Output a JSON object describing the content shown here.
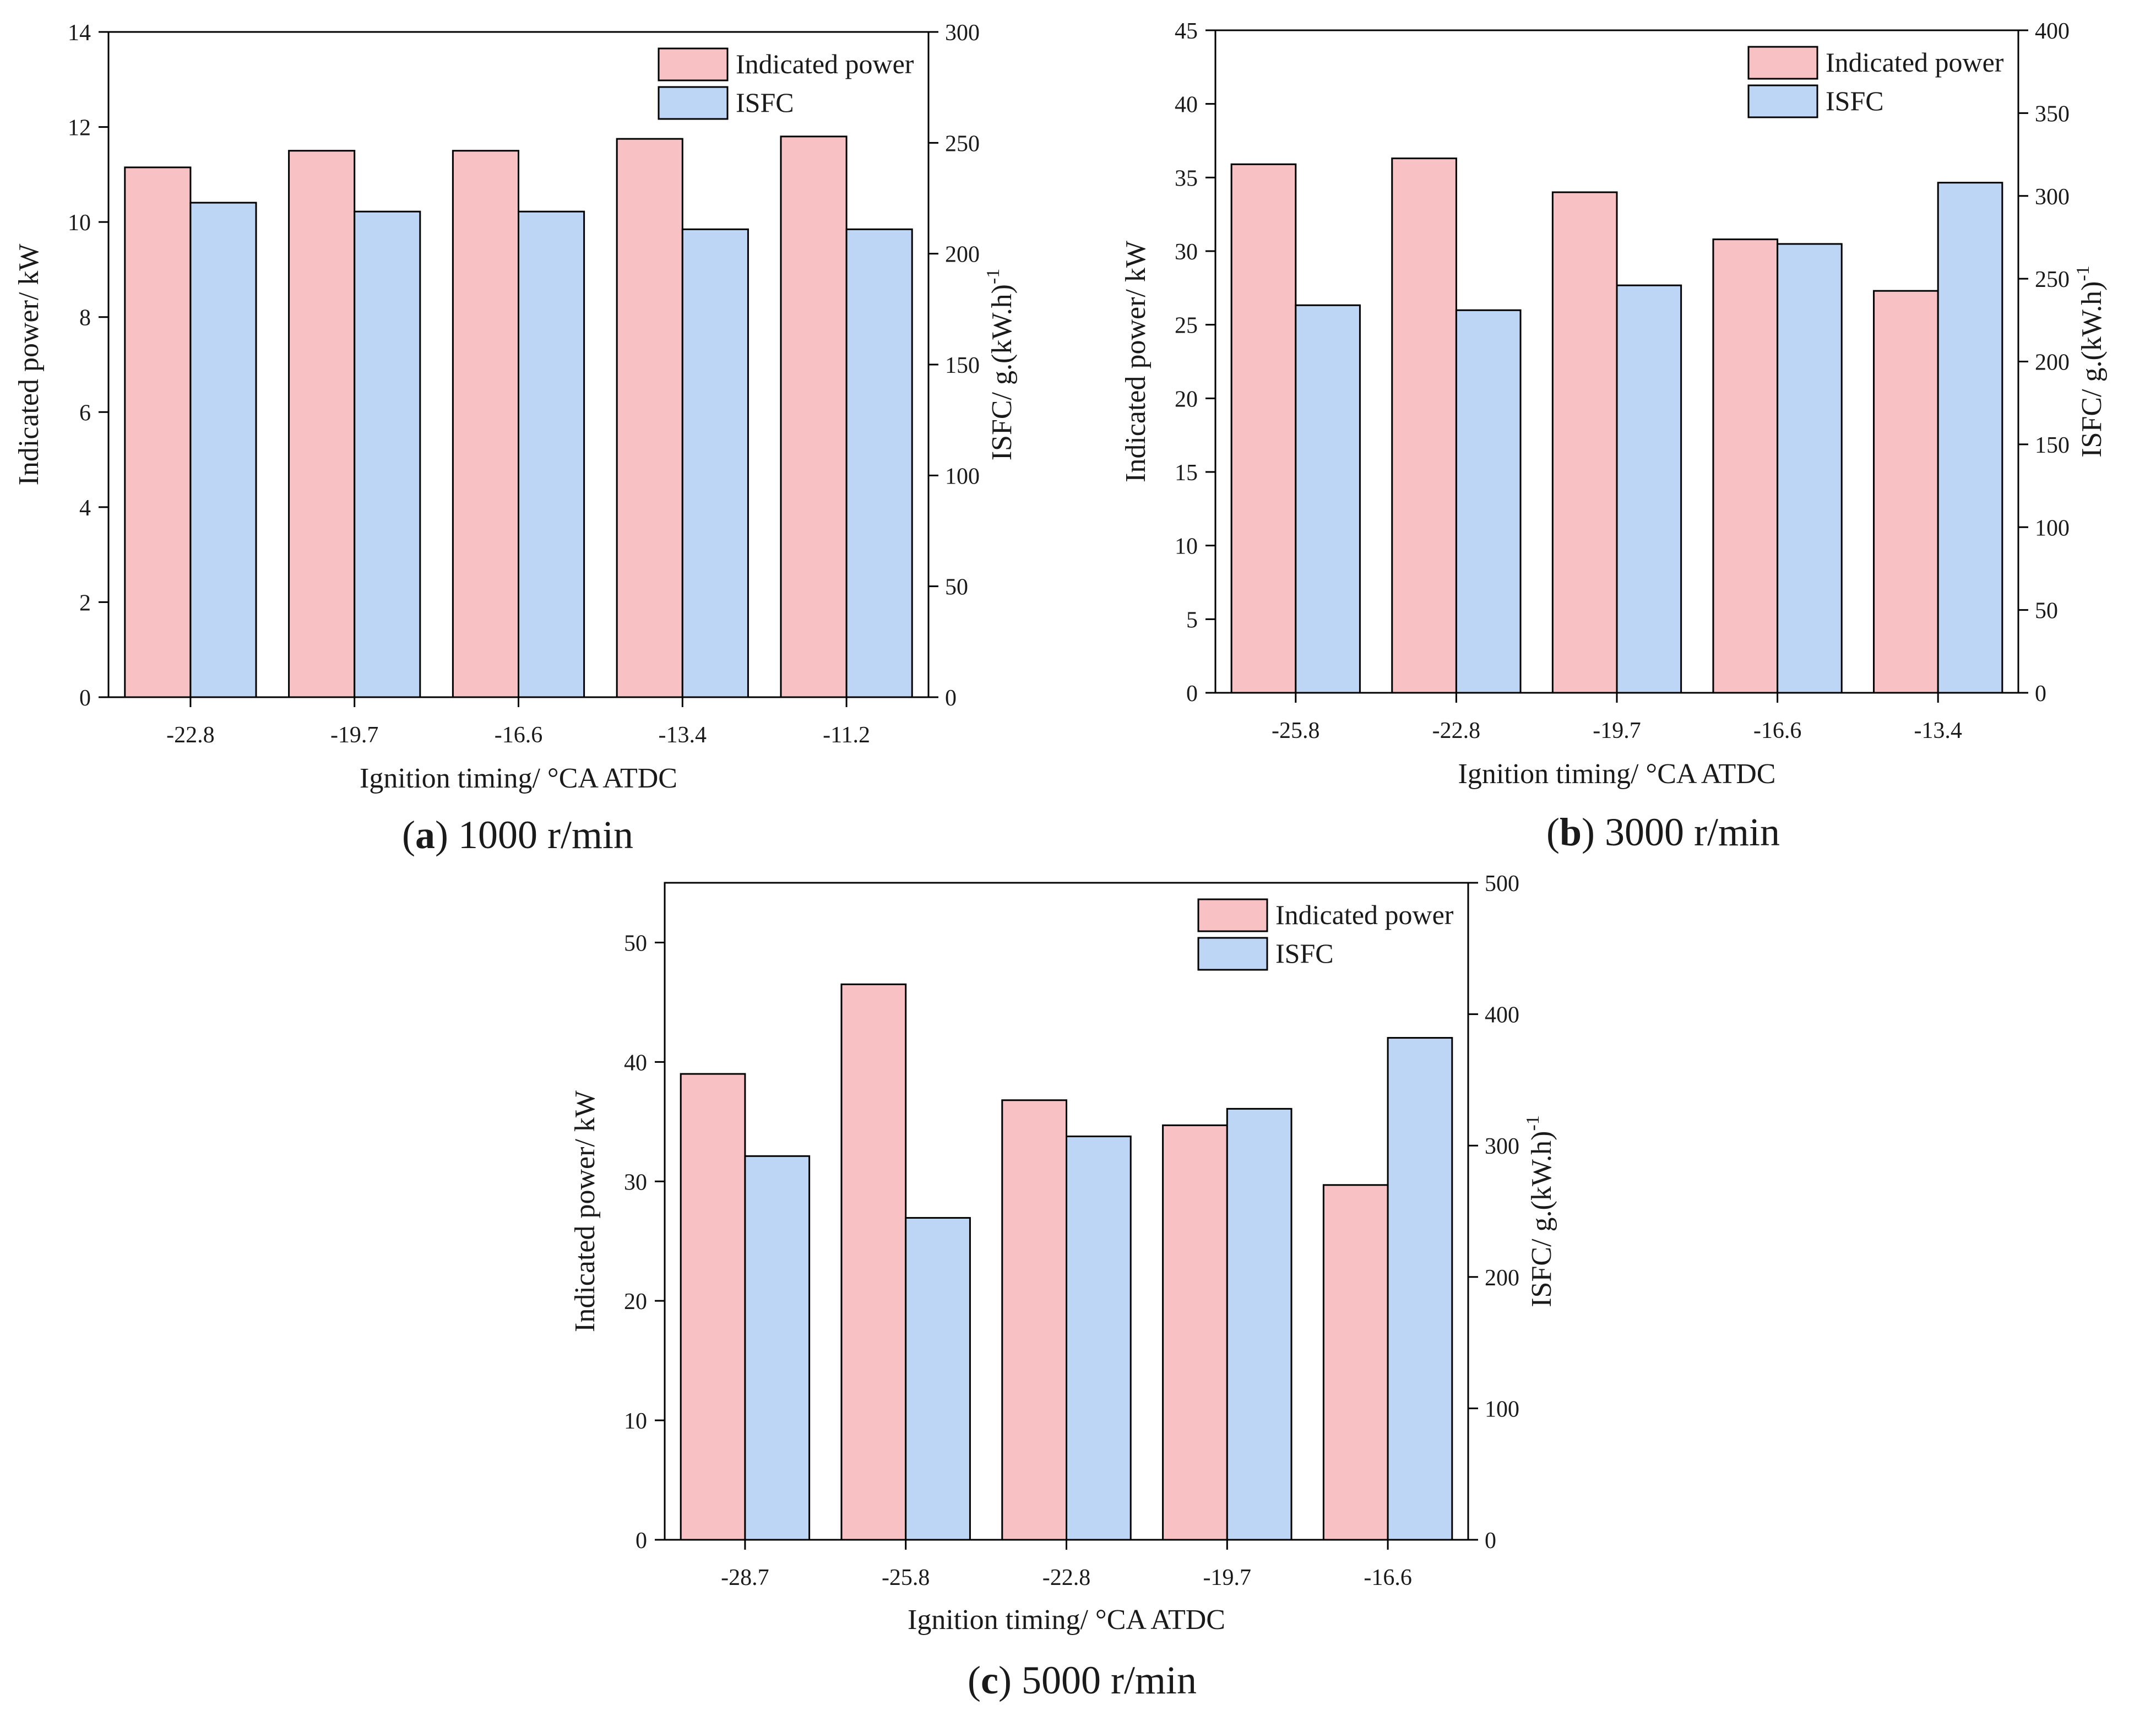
{
  "colors": {
    "indicated_power": "#f8c1c4",
    "isfc": "#bdd6f6"
  },
  "chart_data": [
    {
      "type": "bar",
      "caption": {
        "letter": "a",
        "text": " 1000 r/min",
        "open": "(",
        "close": ")"
      },
      "xlabel": "Ignition timing/ °CA ATDC",
      "ylabel": "Indicated power/ kW",
      "y2label_main": "ISFC/ g.(kW.h)",
      "y2label_sup": "-1",
      "categories": [
        "-22.8",
        "-19.7",
        "-16.6",
        "-13.4",
        "-11.2"
      ],
      "ylim": [
        0,
        14
      ],
      "yticks": [
        "0",
        "2",
        "4",
        "6",
        "8",
        "10",
        "12",
        "14"
      ],
      "y2lim": [
        0,
        300
      ],
      "y2ticks": [
        "0",
        "50",
        "100",
        "150",
        "200",
        "250",
        "300"
      ],
      "legend": [
        "Indicated power",
        "ISFC"
      ],
      "legend_position": "top-right",
      "series": [
        {
          "name": "Indicated power",
          "axis": "left",
          "values": [
            11.15,
            11.5,
            11.5,
            11.75,
            11.8
          ]
        },
        {
          "name": "ISFC",
          "axis": "right",
          "values": [
            223,
            219,
            219,
            211,
            211
          ]
        }
      ]
    },
    {
      "type": "bar",
      "caption": {
        "letter": "b",
        "text": " 3000 r/min",
        "open": "(",
        "close": ")"
      },
      "xlabel": "Ignition timing/ °CA ATDC",
      "ylabel": "Indicated power/ kW",
      "y2label_main": "ISFC/ g.(kW.h)",
      "y2label_sup": "-1",
      "categories": [
        "-25.8",
        "-22.8",
        "-19.7",
        "-16.6",
        "-13.4"
      ],
      "ylim": [
        0,
        45
      ],
      "yticks": [
        "0",
        "5",
        "10",
        "15",
        "20",
        "25",
        "30",
        "35",
        "40",
        "45"
      ],
      "y2lim": [
        0,
        400
      ],
      "y2ticks": [
        "0",
        "50",
        "100",
        "150",
        "200",
        "250",
        "300",
        "350",
        "400"
      ],
      "legend": [
        "Indicated power",
        "ISFC"
      ],
      "legend_position": "top-right",
      "series": [
        {
          "name": "Indicated power",
          "axis": "left",
          "values": [
            35.9,
            36.3,
            34.0,
            30.8,
            27.3
          ]
        },
        {
          "name": "ISFC",
          "axis": "right",
          "values": [
            234,
            231,
            246,
            271,
            308
          ]
        }
      ]
    },
    {
      "type": "bar",
      "caption": {
        "letter": "c",
        "text": " 5000 r/min",
        "open": "(",
        "close": ")"
      },
      "xlabel": "Ignition timing/ °CA ATDC",
      "ylabel": "Indicated power/ kW",
      "y2label_main": "ISFC/ g.(kW.h)",
      "y2label_sup": "-1",
      "categories": [
        "-28.7",
        "-25.8",
        "-22.8",
        "-19.7",
        "-16.6"
      ],
      "ylim": [
        0,
        55
      ],
      "yticks": [
        "0",
        "10",
        "20",
        "30",
        "40",
        "50"
      ],
      "y2lim": [
        0,
        500
      ],
      "y2ticks": [
        "0",
        "100",
        "200",
        "300",
        "400",
        "500"
      ],
      "legend": [
        "Indicated power",
        "ISFC"
      ],
      "legend_position": "top-right",
      "series": [
        {
          "name": "Indicated power",
          "axis": "left",
          "values": [
            39.0,
            46.5,
            36.8,
            34.7,
            29.7
          ]
        },
        {
          "name": "ISFC",
          "axis": "right",
          "values": [
            292,
            245,
            307,
            328,
            382
          ]
        }
      ]
    }
  ]
}
